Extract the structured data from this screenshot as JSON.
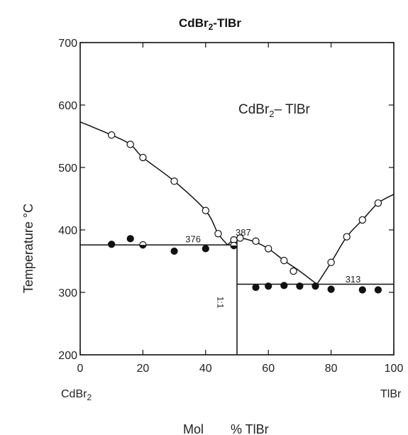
{
  "chart_data": {
    "type": "scatter",
    "title_base": "CdBr",
    "title_sub": "2",
    "title_tail": "-TlBr",
    "inset_label_base": "CdBr",
    "inset_label_sub": "2",
    "inset_label_tail": "– TlBr",
    "xlabel_left": "Mol",
    "xlabel_right": "% TlBr",
    "ylabel": "Temperature  °C",
    "left_end_label_base": "CdBr",
    "left_end_label_sub": "2",
    "right_end_label": "TlBr",
    "xlim": [
      0,
      100
    ],
    "ylim": [
      200,
      700
    ],
    "x_ticks": [
      0,
      20,
      40,
      60,
      80,
      100
    ],
    "y_ticks": [
      200,
      300,
      400,
      500,
      600,
      700
    ],
    "grid": false,
    "annotations": [
      {
        "text": "376",
        "x": 36,
        "y": 380
      },
      {
        "text": "387",
        "x": 52,
        "y": 391
      },
      {
        "text": "313",
        "x": 87,
        "y": 316
      },
      {
        "text": "1:1",
        "x": 47,
        "y": 284
      }
    ],
    "series": [
      {
        "marker": "open-circle",
        "x": [
          10,
          16,
          20,
          30,
          40,
          44,
          49,
          51,
          56,
          60,
          65,
          68,
          80,
          85,
          90,
          95
        ],
        "y": [
          552,
          537,
          516,
          478,
          431,
          394,
          384,
          387,
          382,
          370,
          351,
          334,
          348,
          389,
          416,
          443
        ]
      },
      {
        "marker": "half-filled-circle",
        "x": [
          20,
          49
        ],
        "y": [
          376,
          375
        ]
      },
      {
        "marker": "filled-circle",
        "x": [
          10,
          16,
          30,
          40,
          56,
          60,
          65,
          70,
          75,
          80,
          90,
          95
        ],
        "y": [
          377,
          386,
          366,
          370,
          308,
          310,
          311,
          310,
          310,
          305,
          304,
          304
        ]
      }
    ],
    "liquidus_left": {
      "x": [
        0,
        10,
        16,
        20,
        30,
        40,
        44,
        47
      ],
      "y": [
        573,
        552,
        537,
        516,
        478,
        431,
        394,
        376
      ]
    },
    "liquidus_middle": {
      "x": [
        47,
        50,
        55,
        60,
        65,
        70,
        75.5
      ],
      "y": [
        376,
        387,
        382,
        370,
        351,
        334,
        313
      ]
    },
    "liquidus_right": {
      "x": [
        75.5,
        80,
        85,
        90,
        95,
        100
      ],
      "y": [
        313,
        348,
        389,
        416,
        443,
        457
      ]
    },
    "eutectic_left": {
      "x": [
        0,
        50
      ],
      "y": [
        376,
        376
      ]
    },
    "eutectic_right": {
      "x": [
        50,
        100
      ],
      "y": [
        313,
        313
      ]
    },
    "compound_line": {
      "x": [
        50,
        50
      ],
      "y": [
        200,
        387
      ]
    }
  }
}
